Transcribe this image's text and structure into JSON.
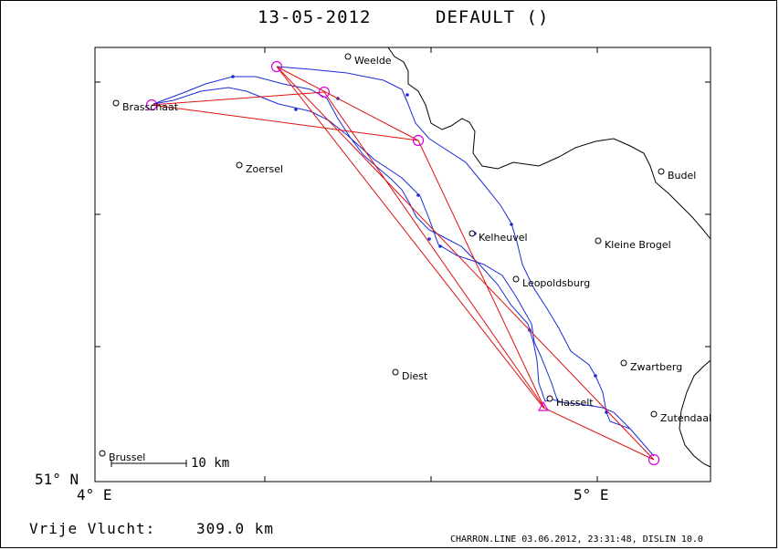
{
  "title": {
    "date": "13-05-2012",
    "name": "DEFAULT ()"
  },
  "footer": {
    "distance_label": "Vrije Vlucht:",
    "distance_value": "309.0 km",
    "credit": "CHARRON.LINE 03.06.2012, 23:31:48, DISLIN 10.0"
  },
  "axes": {
    "y_label": "51° N",
    "x_label_left": "4° E",
    "x_label_right": "5° E"
  },
  "scale_bar": {
    "label": "10 km"
  },
  "places": [
    {
      "name": "Weelde"
    },
    {
      "name": "Brasschaat"
    },
    {
      "name": "Zoersel"
    },
    {
      "name": "Budel"
    },
    {
      "name": "Kelheuvel"
    },
    {
      "name": "Kleine Brogel"
    },
    {
      "name": "Leopoldsburg"
    },
    {
      "name": "Zwartberg"
    },
    {
      "name": "Diest"
    },
    {
      "name": "Hasselt"
    },
    {
      "name": "Zutendaal"
    },
    {
      "name": "Brussel"
    }
  ],
  "colors": {
    "track": "#1a2bd6",
    "task": "#e01010",
    "turnpoint": "#e000e0",
    "map": "#000000"
  }
}
